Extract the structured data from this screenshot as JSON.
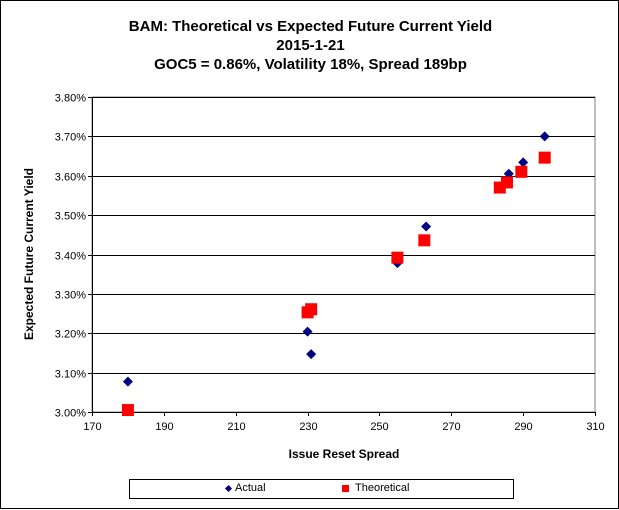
{
  "chart_data": {
    "type": "scatter",
    "title_lines": [
      "BAM: Theoretical vs Expected Future Current Yield",
      "2015-1-21",
      "GOC5 = 0.86%, Volatility 18%, Spread 189bp"
    ],
    "xlabel": "Issue Reset Spread",
    "ylabel": "Expected Future Current Yield",
    "xlim": [
      170,
      310
    ],
    "ylim": [
      3.0,
      3.8
    ],
    "x_ticks": [
      170,
      190,
      210,
      230,
      250,
      270,
      290,
      310
    ],
    "y_ticks": [
      3.0,
      3.1,
      3.2,
      3.3,
      3.4,
      3.5,
      3.6,
      3.7,
      3.8
    ],
    "y_tick_labels": [
      "3.00%",
      "3.10%",
      "3.20%",
      "3.30%",
      "3.40%",
      "3.50%",
      "3.60%",
      "3.70%",
      "3.80%"
    ],
    "grid": "horizontal",
    "legend_position": "bottom",
    "series": [
      {
        "name": "Actual",
        "marker": "diamond",
        "color": "#000080",
        "points": [
          {
            "x": 180,
            "y": 3.077
          },
          {
            "x": 230,
            "y": 3.204
          },
          {
            "x": 231,
            "y": 3.147
          },
          {
            "x": 255,
            "y": 3.378
          },
          {
            "x": 263,
            "y": 3.471
          },
          {
            "x": 286,
            "y": 3.605
          },
          {
            "x": 290,
            "y": 3.634
          },
          {
            "x": 296,
            "y": 3.7
          }
        ]
      },
      {
        "name": "Theoretical",
        "marker": "square",
        "color": "#ff0000",
        "points": [
          {
            "x": 180,
            "y": 3.005
          },
          {
            "x": 230,
            "y": 3.253
          },
          {
            "x": 231,
            "y": 3.261
          },
          {
            "x": 255,
            "y": 3.392
          },
          {
            "x": 262.5,
            "y": 3.436
          },
          {
            "x": 283.5,
            "y": 3.57
          },
          {
            "x": 285.5,
            "y": 3.583
          },
          {
            "x": 289.5,
            "y": 3.61
          },
          {
            "x": 296,
            "y": 3.646
          }
        ]
      }
    ]
  }
}
